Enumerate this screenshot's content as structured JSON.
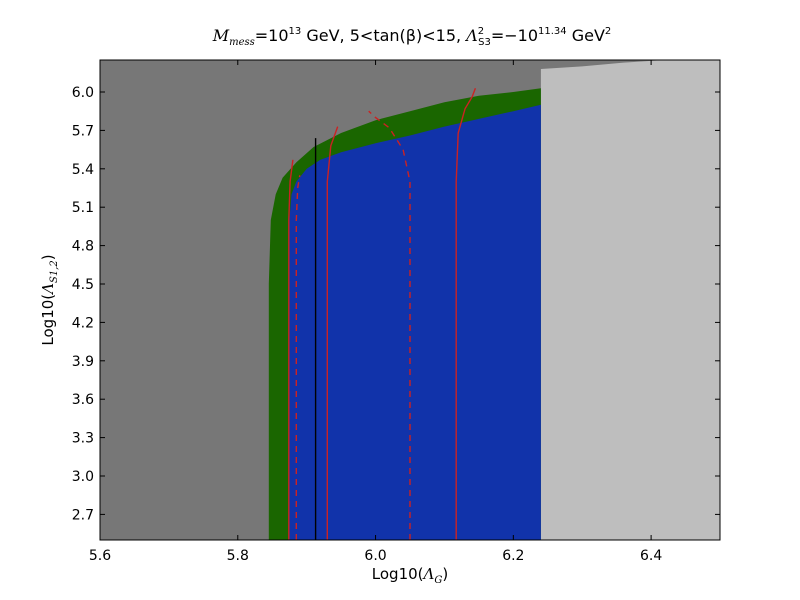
{
  "chart_data": {
    "type": "area",
    "title_parts": {
      "m_symbol": "M",
      "m_sub": "mess",
      "m_eq": "=10",
      "m_exp": "13",
      "unit1": " GeV, ",
      "tan_lo": "5",
      "tan_mid": "<tan(β)<",
      "tan_hi": "15",
      "comma": ", ",
      "lam_symbol": "Λ",
      "lam_sup": "2",
      "lam_sub": "S3",
      "lam_eq": "=−10",
      "lam_exp": "11.34",
      "unit2": " GeV",
      "unit2_sup": "2"
    },
    "xlabel_parts": {
      "prefix": "Log10(",
      "symbol": "Λ",
      "sub": "G",
      "suffix": ")"
    },
    "ylabel_parts": {
      "prefix": "Log10(",
      "symbol": "Λ",
      "sub": "S1,2",
      "suffix": ")"
    },
    "xlim": [
      5.6,
      6.5
    ],
    "ylim": [
      2.5,
      6.25
    ],
    "xticks": [
      "5.6",
      "5.8",
      "6.0",
      "6.2",
      "6.4"
    ],
    "yticks": [
      "2.7",
      "3.0",
      "3.3",
      "3.6",
      "3.9",
      "4.2",
      "4.5",
      "4.8",
      "5.1",
      "5.4",
      "5.7",
      "6.0"
    ],
    "colors": {
      "dark_gray": "#777777",
      "light_gray": "#bebebe",
      "green": "#1a6600",
      "blue": "#1133aa",
      "red": "#cc2222",
      "black": "#000000"
    },
    "regions": {
      "upper_bound": [
        [
          5.6,
          6.25
        ],
        [
          6.24,
          6.25
        ],
        [
          6.3,
          6.25
        ],
        [
          6.36,
          6.25
        ],
        [
          6.5,
          6.25
        ]
      ],
      "green_outer": [
        [
          5.845,
          2.5
        ],
        [
          5.845,
          4.5
        ],
        [
          5.848,
          5.0
        ],
        [
          5.855,
          5.2
        ],
        [
          5.865,
          5.33
        ],
        [
          5.885,
          5.45
        ],
        [
          5.91,
          5.57
        ],
        [
          5.95,
          5.68
        ],
        [
          6.0,
          5.78
        ],
        [
          6.05,
          5.85
        ],
        [
          6.1,
          5.92
        ],
        [
          6.15,
          5.97
        ],
        [
          6.2,
          6.0
        ],
        [
          6.24,
          6.03
        ]
      ],
      "blue_outer": [
        [
          5.875,
          2.5
        ],
        [
          5.875,
          5.0
        ],
        [
          5.878,
          5.2
        ],
        [
          5.885,
          5.3
        ],
        [
          5.9,
          5.4
        ],
        [
          5.92,
          5.47
        ],
        [
          5.95,
          5.53
        ],
        [
          6.0,
          5.6
        ],
        [
          6.05,
          5.66
        ],
        [
          6.1,
          5.73
        ],
        [
          6.15,
          5.79
        ],
        [
          6.2,
          5.85
        ],
        [
          6.24,
          5.9
        ]
      ],
      "light_gray_left_x": 6.24,
      "light_gray_top": [
        [
          6.24,
          6.18
        ],
        [
          6.3,
          6.2
        ],
        [
          6.36,
          6.23
        ],
        [
          6.42,
          6.25
        ],
        [
          6.5,
          6.25
        ]
      ]
    },
    "contours": [
      {
        "style": "solid",
        "color": "red",
        "points": [
          [
            5.874,
            2.5
          ],
          [
            5.874,
            5.0
          ],
          [
            5.876,
            5.3
          ],
          [
            5.88,
            5.47
          ]
        ]
      },
      {
        "style": "dashed",
        "color": "red",
        "points": [
          [
            5.885,
            2.5
          ],
          [
            5.885,
            5.0
          ],
          [
            5.887,
            5.25
          ],
          [
            5.89,
            5.35
          ]
        ]
      },
      {
        "style": "solid",
        "color": "black",
        "points": [
          [
            5.913,
            2.5
          ],
          [
            5.913,
            5.64
          ]
        ]
      },
      {
        "style": "solid",
        "color": "red",
        "points": [
          [
            5.93,
            2.5
          ],
          [
            5.93,
            5.3
          ],
          [
            5.935,
            5.58
          ],
          [
            5.945,
            5.73
          ]
        ]
      },
      {
        "style": "dashed",
        "color": "red",
        "points": [
          [
            6.05,
            2.5
          ],
          [
            6.05,
            5.3
          ],
          [
            6.04,
            5.55
          ],
          [
            6.02,
            5.72
          ],
          [
            6.0,
            5.8
          ],
          [
            5.99,
            5.85
          ]
        ]
      },
      {
        "style": "solid",
        "color": "red",
        "points": [
          [
            6.117,
            2.5
          ],
          [
            6.117,
            5.3
          ],
          [
            6.12,
            5.68
          ],
          [
            6.13,
            5.87
          ],
          [
            6.14,
            5.96
          ],
          [
            6.145,
            6.03
          ]
        ]
      }
    ]
  }
}
